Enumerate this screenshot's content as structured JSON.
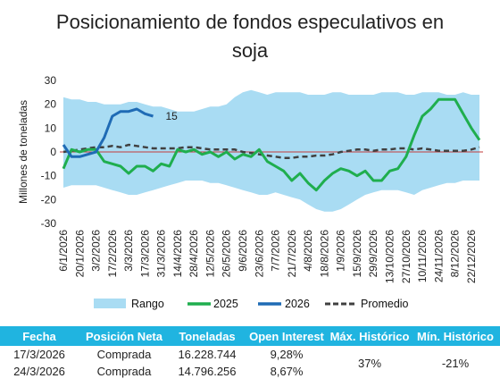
{
  "title_line1": "Posicionamiento de fondos especulativos en",
  "title_line2": "soja",
  "chart_data": {
    "type": "area",
    "ylabel": "Millones de toneladas",
    "ylim": [
      -30,
      30
    ],
    "yticks": [
      -30,
      -20,
      -10,
      0,
      10,
      20,
      30
    ],
    "xlabels": [
      "6/1/2026",
      "20/1/2026",
      "3/2/2026",
      "17/2/2026",
      "3/3/2026",
      "17/3/2026",
      "31/3/2026",
      "14/4/2026",
      "28/4/2026",
      "12/5/2026",
      "26/5/2026",
      "9/6/2026",
      "23/6/2026",
      "7/7/2026",
      "21/7/2026",
      "4/8/2026",
      "18/8/2026",
      "1/9/2026",
      "15/9/2026",
      "29/9/2026",
      "13/10/2026",
      "27/10/2026",
      "10/11/2026",
      "24/11/2026",
      "8/12/2026",
      "22/12/2026"
    ],
    "n_weeks": 52,
    "range_max": [
      23,
      22,
      22,
      21,
      21,
      20,
      20,
      20,
      21,
      21,
      20,
      19,
      19,
      18,
      17,
      17,
      17,
      18,
      19,
      19,
      20,
      23,
      25,
      26,
      25,
      24,
      25,
      25,
      25,
      25,
      24,
      24,
      24,
      25,
      25,
      24,
      24,
      24,
      24,
      25,
      25,
      25,
      24,
      24,
      25,
      25,
      25,
      24,
      24,
      25,
      24,
      24
    ],
    "range_min": [
      -15,
      -14,
      -14,
      -14,
      -14,
      -15,
      -16,
      -17,
      -18,
      -18,
      -17,
      -16,
      -15,
      -14,
      -13,
      -12,
      -12,
      -12,
      -13,
      -13,
      -14,
      -15,
      -16,
      -17,
      -18,
      -18,
      -17,
      -18,
      -19,
      -20,
      -22,
      -24,
      -25,
      -25,
      -24,
      -22,
      -20,
      -18,
      -17,
      -16,
      -16,
      -16,
      -17,
      -18,
      -16,
      -15,
      -14,
      -13,
      -13,
      -12,
      -12,
      -12
    ],
    "series": [
      {
        "name": "2025",
        "color": "#1fae4e",
        "values": [
          -7,
          1,
          0,
          1,
          1,
          -4,
          -5,
          -6,
          -9,
          -6,
          -6,
          -8,
          -5,
          -6,
          1,
          0,
          1,
          -1,
          0,
          -2,
          0,
          -3,
          -1,
          -2,
          1,
          -4,
          -6,
          -8,
          -12,
          -9,
          -13,
          -16,
          -12,
          -9,
          -7,
          -8,
          -10,
          -8,
          -12,
          -12,
          -8,
          -7,
          -2,
          7,
          15,
          18,
          22,
          22,
          22,
          16,
          10,
          5
        ]
      },
      {
        "name": "2026",
        "color": "#1f6bb5",
        "values": [
          3,
          -2,
          -2,
          -1,
          0,
          6,
          15,
          17,
          17,
          18,
          16,
          15
        ]
      },
      {
        "name": "Promedio",
        "color": "#404040",
        "values": [
          0,
          0.5,
          1,
          1.5,
          2,
          2,
          2.5,
          2,
          3,
          2.5,
          2,
          1.5,
          1.5,
          1.5,
          1.5,
          2,
          2,
          1.5,
          1,
          1,
          1,
          1,
          0,
          -0.5,
          -1,
          -1.5,
          -2,
          -2.5,
          -2.5,
          -2,
          -2,
          -1.5,
          -1.5,
          -1,
          0,
          0.5,
          1,
          1,
          0.5,
          1,
          1,
          1.5,
          1.5,
          1,
          1.5,
          1,
          0.5,
          0.5,
          0.5,
          0.5,
          1,
          2
        ]
      }
    ],
    "label_2026": "15",
    "legend": {
      "range": "Rango",
      "s2025": "2025",
      "s2026": "2026",
      "avg": "Promedio"
    },
    "colors": {
      "range": "#a9dcf3",
      "zero_line": "#c23b3b"
    }
  },
  "table": {
    "headers": [
      "Fecha",
      "Posición Neta",
      "Toneladas",
      "Open Interest",
      "Máx. Histórico",
      "Mín. Histórico"
    ],
    "rows": [
      [
        "17/3/2026",
        "Comprada",
        "16.228.744",
        "9,28%"
      ],
      [
        "24/3/2026",
        "Comprada",
        "14.796.256",
        "8,67%"
      ]
    ],
    "max_hist": "37%",
    "min_hist": "-21%"
  }
}
